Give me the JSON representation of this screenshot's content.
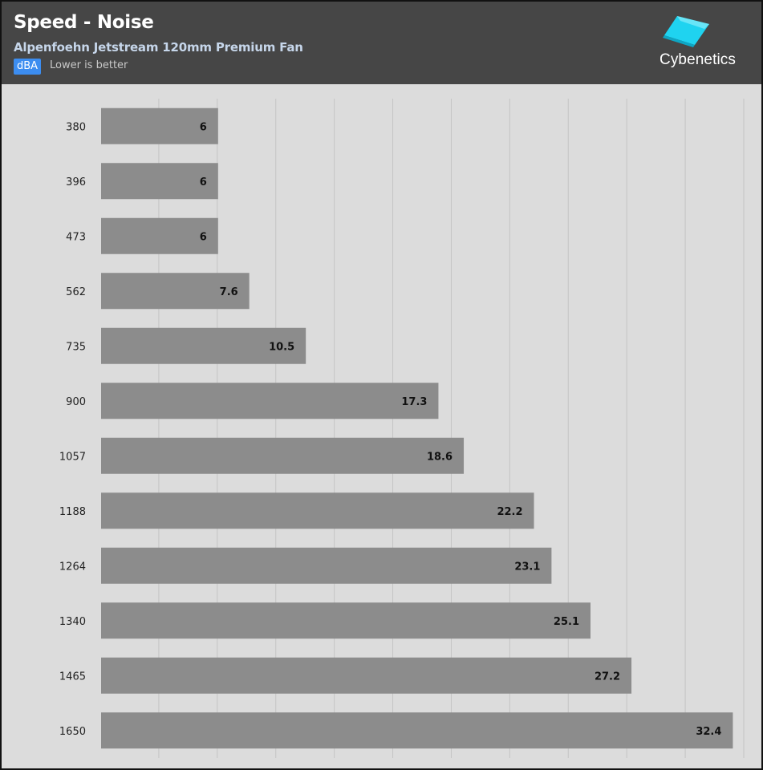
{
  "header": {
    "title": "Speed - Noise",
    "subtitle": "Alpenfoehn Jetstream 120mm Premium Fan",
    "unit_badge": "dBA",
    "note": "Lower is better",
    "logo_text": "Cybenetics"
  },
  "colors": {
    "header_bg": "#464646",
    "plot_bg": "#dcdcdc",
    "bar": "#8c8c8c",
    "badge": "#3c8df0",
    "logo_icon": "#1fd3f0"
  },
  "chart_data": {
    "type": "bar",
    "orientation": "horizontal",
    "title": "Speed - Noise",
    "subtitle": "Alpenfoehn Jetstream 120mm Premium Fan",
    "xlabel": "dBA",
    "ylabel": "",
    "categories": [
      "380",
      "396",
      "473",
      "562",
      "735",
      "900",
      "1057",
      "1188",
      "1264",
      "1340",
      "1465",
      "1650"
    ],
    "values": [
      6,
      6,
      6,
      7.6,
      10.5,
      17.3,
      18.6,
      22.2,
      23.1,
      25.1,
      27.2,
      32.4
    ],
    "xlim": [
      0,
      33
    ],
    "grid": true,
    "data_labels": [
      "6",
      "6",
      "6",
      "7.6",
      "10.5",
      "17.3",
      "18.6",
      "22.2",
      "23.1",
      "25.1",
      "27.2",
      "32.4"
    ]
  }
}
